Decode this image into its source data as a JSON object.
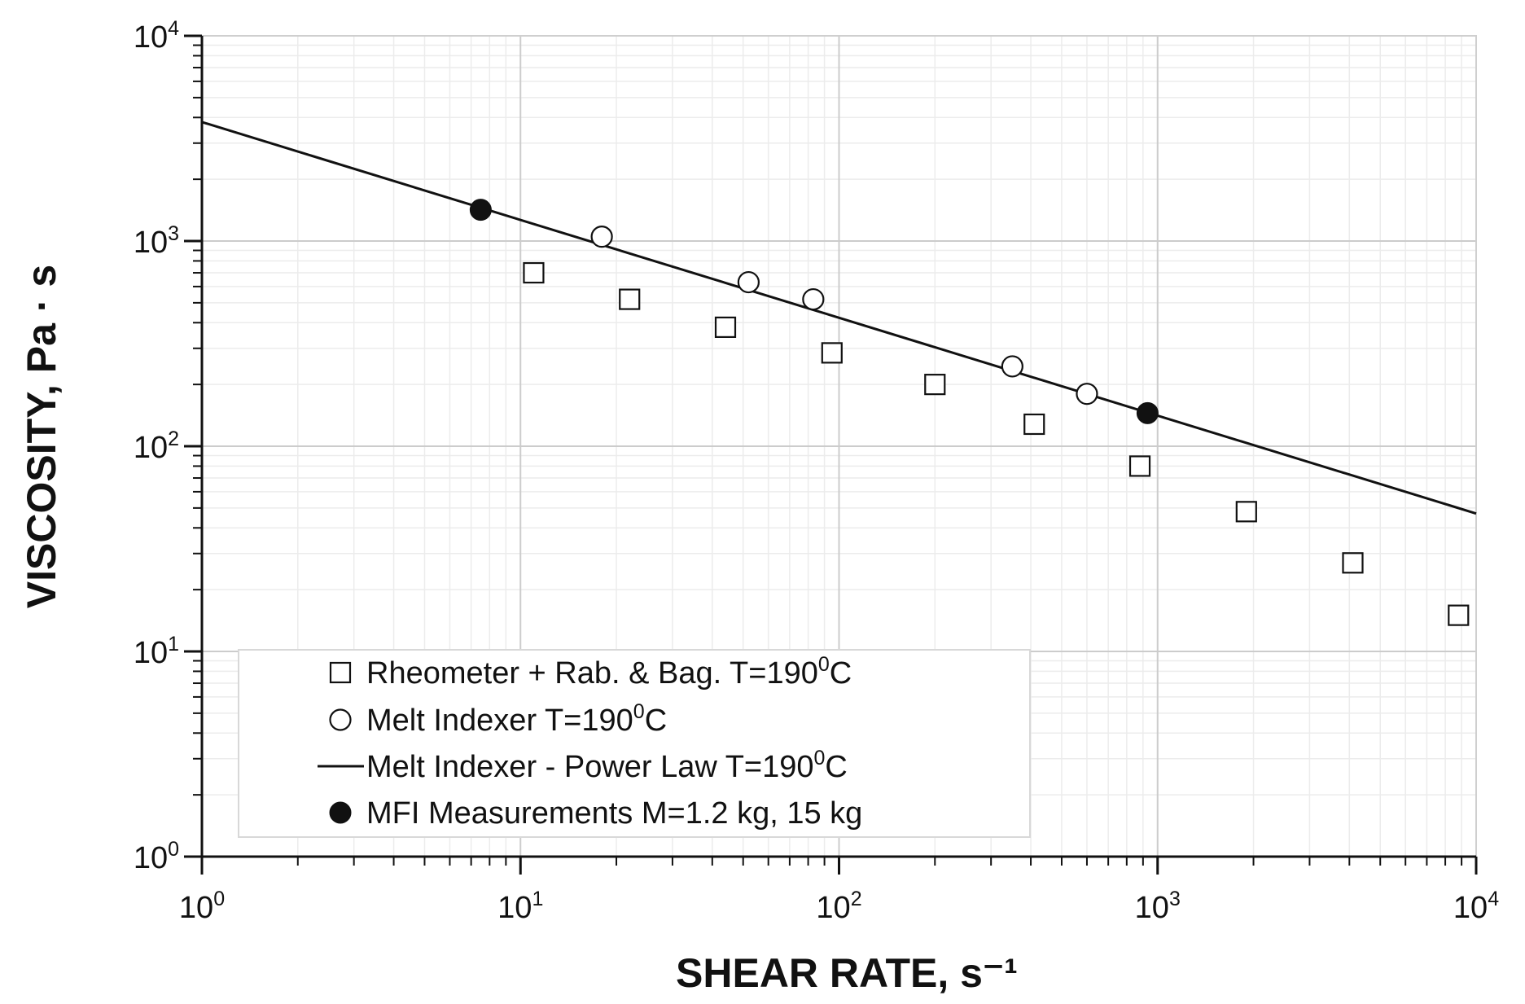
{
  "chart_data": {
    "type": "scatter",
    "scale": {
      "x": "log",
      "y": "log"
    },
    "xlabel": "SHEAR RATE, s⁻¹",
    "ylabel": "VISCOSITY, Pa · s",
    "xlim": [
      1,
      10000
    ],
    "ylim": [
      1,
      10000
    ],
    "x_ticks": [
      {
        "base": "10",
        "exp": "0",
        "value": 1
      },
      {
        "base": "10",
        "exp": "1",
        "value": 10
      },
      {
        "base": "10",
        "exp": "2",
        "value": 100
      },
      {
        "base": "10",
        "exp": "3",
        "value": 1000
      },
      {
        "base": "10",
        "exp": "4",
        "value": 10000
      }
    ],
    "y_ticks": [
      {
        "base": "10",
        "exp": "0",
        "value": 1
      },
      {
        "base": "10",
        "exp": "1",
        "value": 10
      },
      {
        "base": "10",
        "exp": "2",
        "value": 100
      },
      {
        "base": "10",
        "exp": "3",
        "value": 1000
      },
      {
        "base": "10",
        "exp": "4",
        "value": 10000
      }
    ],
    "grid": true,
    "legend_position": "bottom-left",
    "series": [
      {
        "name": "Rheometer + Rab. & Bag.",
        "temp_prefix": "T=190",
        "temp_sup": "0",
        "temp_suffix": "C",
        "marker": "open-square",
        "points": [
          [
            11,
            700
          ],
          [
            22,
            520
          ],
          [
            44,
            380
          ],
          [
            95,
            285
          ],
          [
            200,
            200
          ],
          [
            410,
            128
          ],
          [
            880,
            80
          ],
          [
            1900,
            48
          ],
          [
            4100,
            27
          ],
          [
            8800,
            15
          ]
        ]
      },
      {
        "name": "Melt Indexer",
        "temp_prefix": "T=190",
        "temp_sup": "0",
        "temp_suffix": "C",
        "marker": "open-circle",
        "points": [
          [
            18,
            1050
          ],
          [
            52,
            630
          ],
          [
            83,
            520
          ],
          [
            350,
            245
          ],
          [
            600,
            180
          ]
        ]
      },
      {
        "name": "Melt Indexer - Power Law",
        "temp_prefix": "T=190",
        "temp_sup": "0",
        "temp_suffix": "C",
        "marker": "line",
        "points": [
          [
            1,
            3800
          ],
          [
            10000,
            47
          ]
        ]
      },
      {
        "name": "MFI Measurements M=1.2 kg, 15 kg",
        "temp_prefix": "",
        "temp_sup": "",
        "temp_suffix": "",
        "marker": "filled-circle",
        "points": [
          [
            7.5,
            1420
          ],
          [
            930,
            145
          ]
        ]
      }
    ]
  }
}
